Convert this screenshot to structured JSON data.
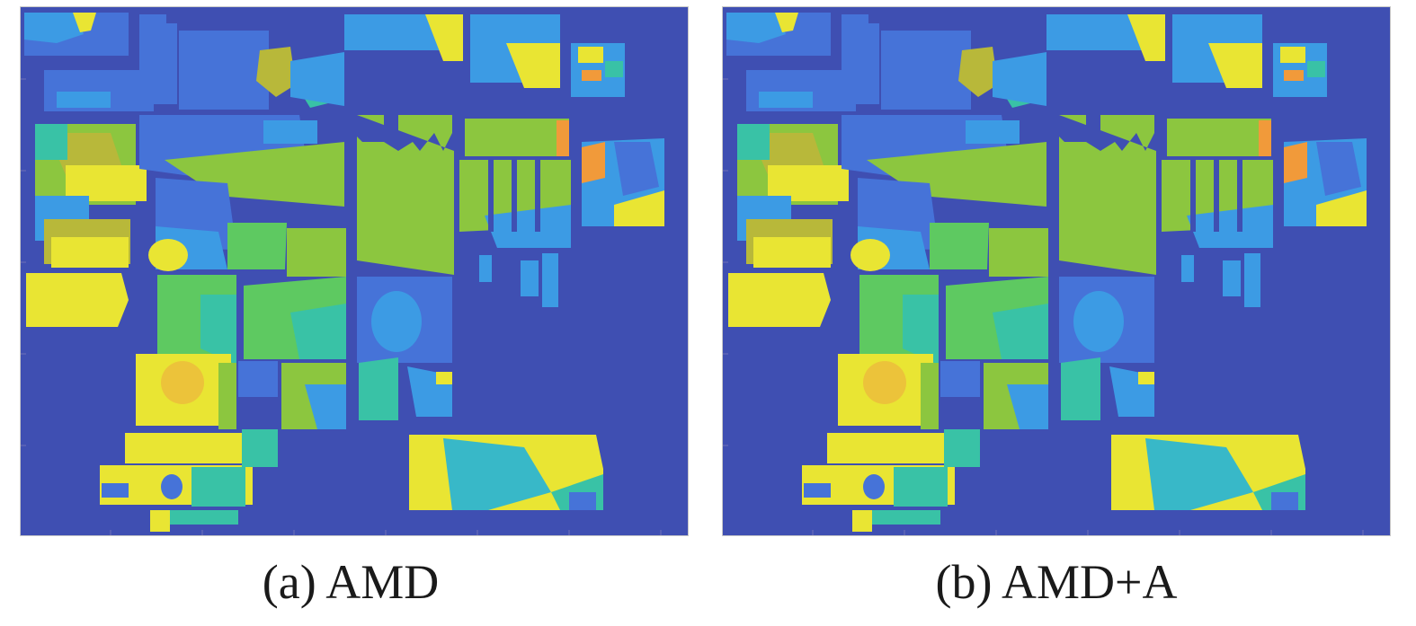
{
  "panels": [
    {
      "caption": "(a) AMD",
      "subject": "classification map"
    },
    {
      "caption": "(b) AMD+A",
      "subject": "classification map"
    }
  ],
  "colors": {
    "background": "#3a3996",
    "dark_blue": "#3f4fb2",
    "mid_blue": "#4673d8",
    "light_blue": "#3c9be4",
    "cyan": "#38b8c8",
    "teal": "#39c2a6",
    "green": "#5ec961",
    "yellow_green": "#8cc63f",
    "olive": "#b8b83a",
    "yellow": "#e9e533",
    "gold": "#ecc33a",
    "orange": "#f19a3a"
  }
}
